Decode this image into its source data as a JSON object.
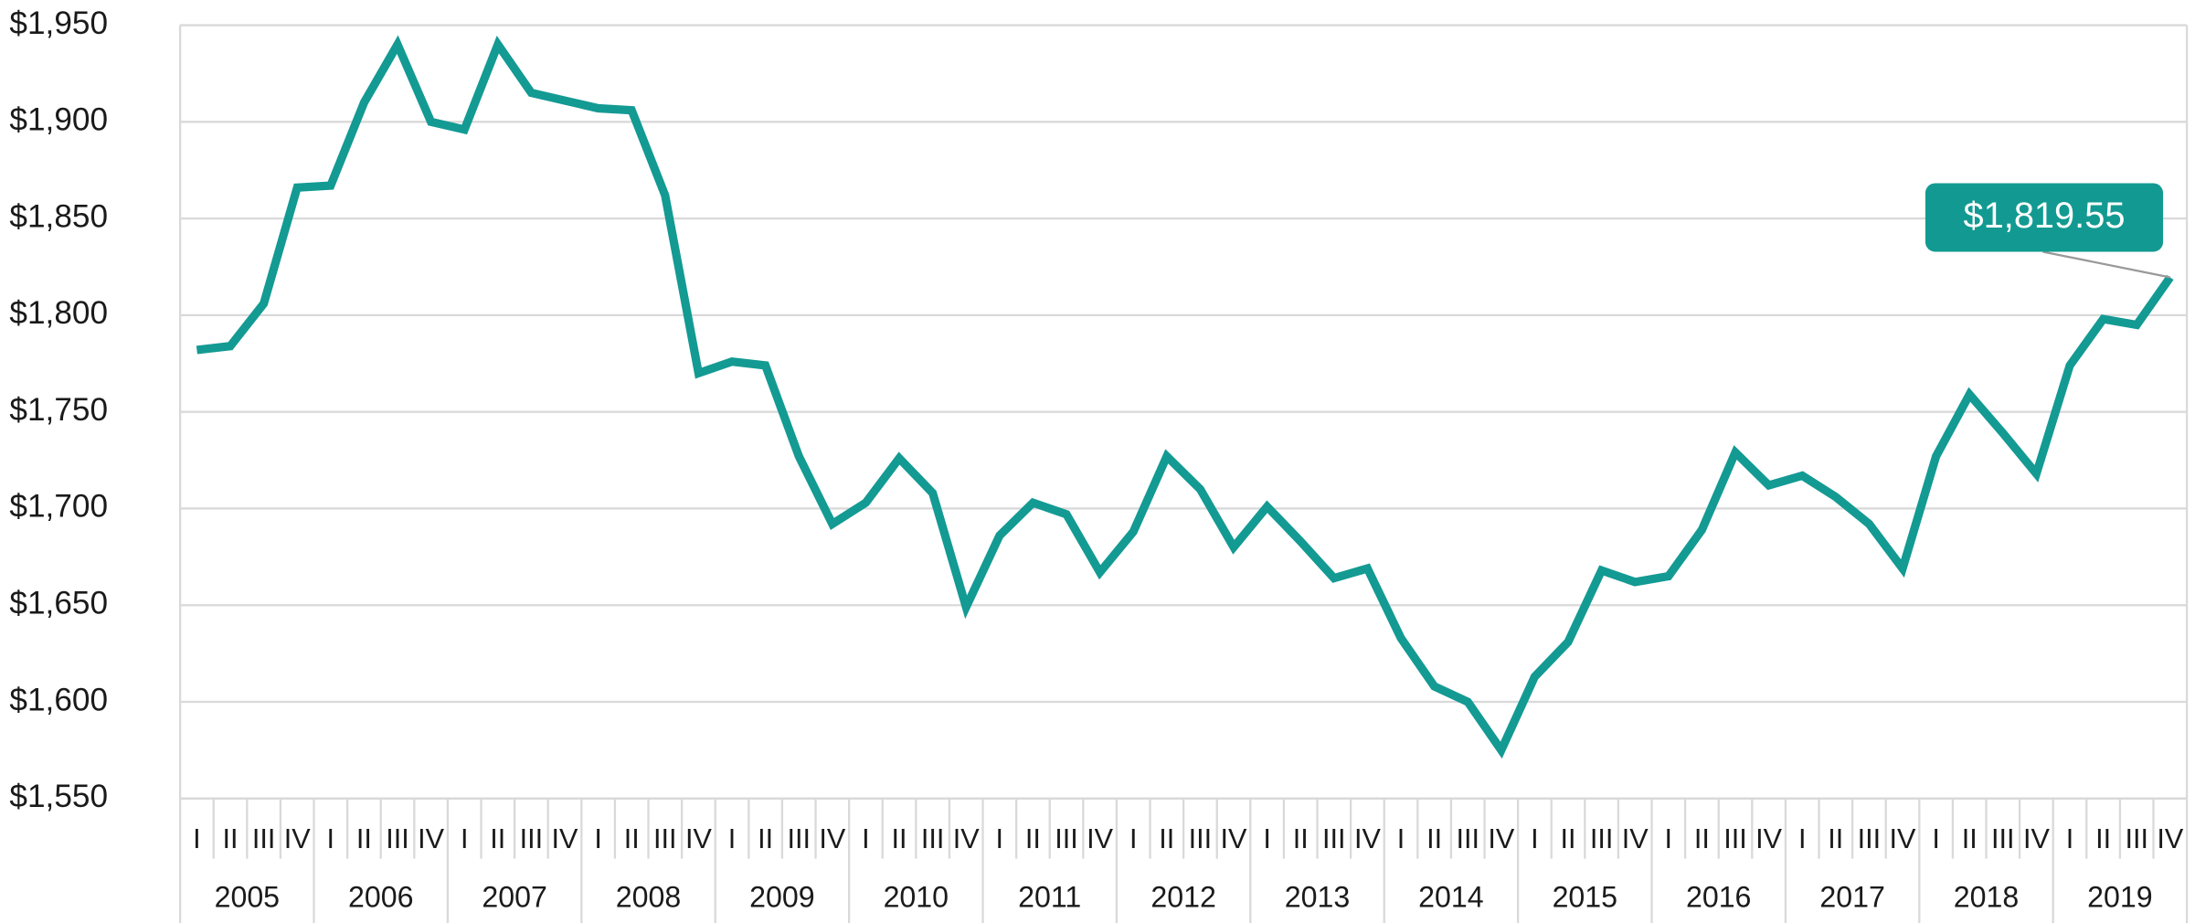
{
  "chart_data": {
    "type": "line",
    "categories": [
      "I",
      "II",
      "III",
      "IV",
      "I",
      "II",
      "III",
      "IV",
      "I",
      "II",
      "III",
      "IV",
      "I",
      "II",
      "III",
      "IV",
      "I",
      "II",
      "III",
      "IV",
      "I",
      "II",
      "III",
      "IV",
      "I",
      "II",
      "III",
      "IV",
      "I",
      "II",
      "III",
      "IV",
      "I",
      "II",
      "III",
      "IV",
      "I",
      "II",
      "III",
      "IV",
      "I",
      "II",
      "III",
      "IV",
      "I",
      "II",
      "III",
      "IV",
      "I",
      "II",
      "III",
      "IV",
      "I",
      "II",
      "III",
      "IV",
      "I",
      "II",
      "III",
      "IV"
    ],
    "year_groups": [
      "2005",
      "2006",
      "2007",
      "2008",
      "2009",
      "2010",
      "2011",
      "2012",
      "2013",
      "2014",
      "2015",
      "2016",
      "2017",
      "2018",
      "2019"
    ],
    "series": [
      {
        "color": "#139a93",
        "values": [
          1782,
          1784,
          1806,
          1866,
          1867,
          1910,
          1940,
          1900,
          1896,
          1940,
          1915,
          1911,
          1907,
          1906,
          1862,
          1770,
          1776,
          1774,
          1727,
          1692,
          1703,
          1726,
          1708,
          1649,
          1686,
          1703,
          1697,
          1667,
          1688,
          1727,
          1710,
          1680,
          1701,
          1683,
          1664,
          1669,
          1633,
          1608,
          1600,
          1575,
          1613,
          1631,
          1668,
          1662,
          1665,
          1689,
          1729,
          1712,
          1717,
          1706,
          1692,
          1669,
          1727,
          1759,
          1739,
          1718,
          1774,
          1798,
          1795,
          1819.55
        ]
      }
    ],
    "ylim": [
      1550,
      1950
    ],
    "yticks": [
      {
        "value": 1550,
        "label": "$1,550"
      },
      {
        "value": 1600,
        "label": "$1,600"
      },
      {
        "value": 1650,
        "label": "$1,650"
      },
      {
        "value": 1700,
        "label": "$1,700"
      },
      {
        "value": 1750,
        "label": "$1,750"
      },
      {
        "value": 1800,
        "label": "$1,800"
      },
      {
        "value": 1850,
        "label": "$1,850"
      },
      {
        "value": 1900,
        "label": "$1,900"
      },
      {
        "value": 1950,
        "label": "$1,950"
      }
    ],
    "grid": true,
    "annotation": {
      "text": "$1,819.55",
      "color": "#129a92"
    }
  }
}
